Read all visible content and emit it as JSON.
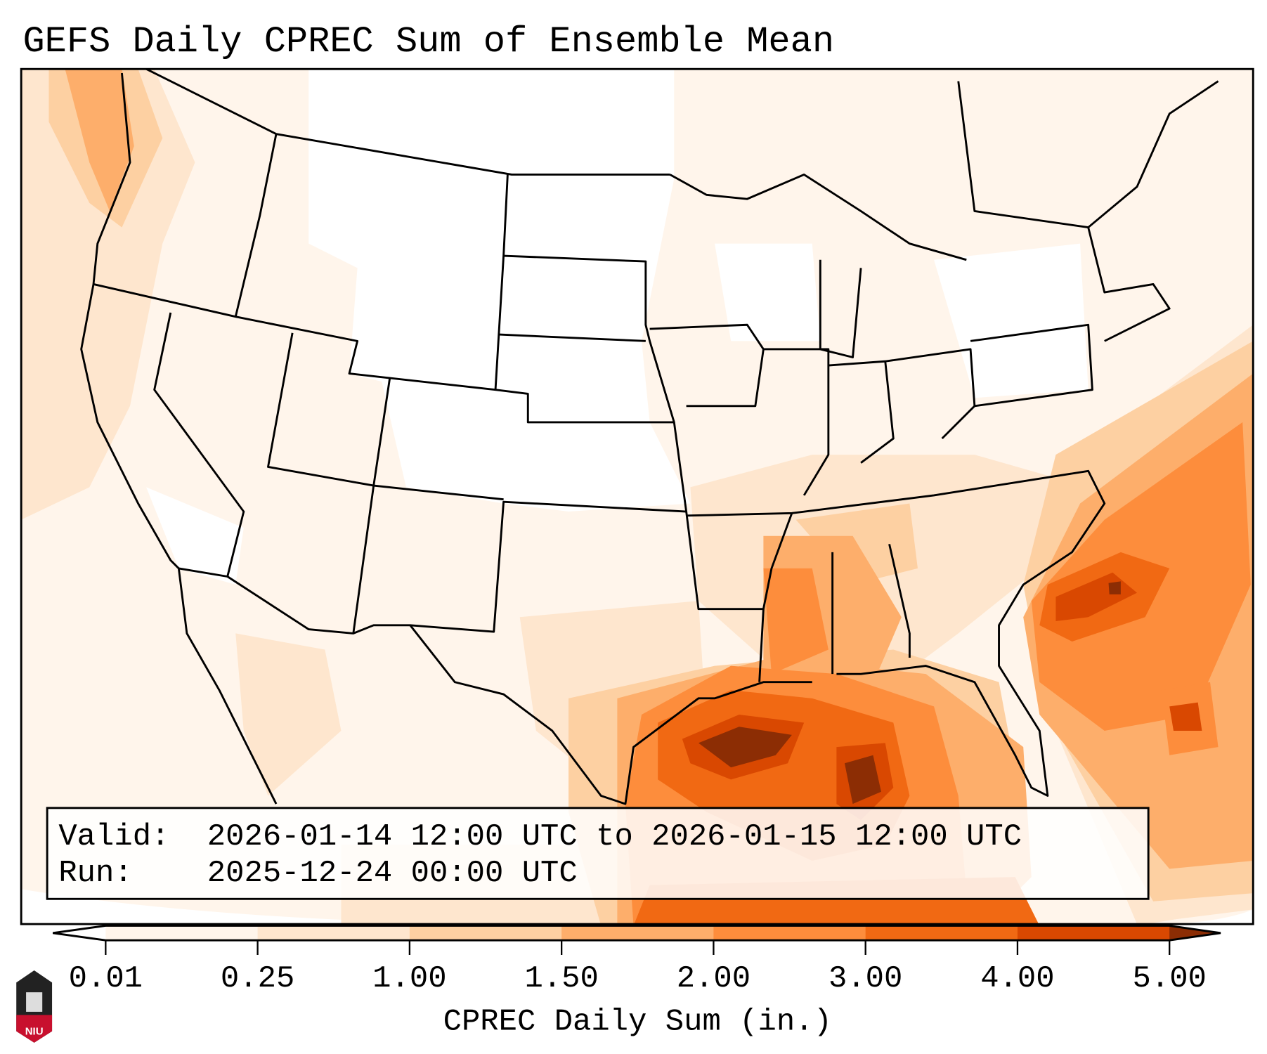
{
  "title": "GEFS Daily CPREC Sum of Ensemble Mean",
  "info_box": {
    "valid_label": "Valid:",
    "valid_value": "2026-01-14 12:00 UTC to 2026-01-15 12:00 UTC",
    "run_label": "Run:",
    "run_value": "2025-12-24 00:00 UTC"
  },
  "colorbar": {
    "label": "CPREC Daily Sum (in.)",
    "ticks": [
      "0.01",
      "0.25",
      "1.00",
      "1.50",
      "2.00",
      "3.00",
      "4.00",
      "5.00"
    ],
    "under_color": "#ffffff",
    "over_color": "#8c2d04",
    "bin_colors": [
      "#fff5eb",
      "#fee6ce",
      "#fdd0a2",
      "#fdae6b",
      "#fd8d3c",
      "#f16913",
      "#d94801"
    ]
  },
  "logo": {
    "text": "NIU"
  }
}
